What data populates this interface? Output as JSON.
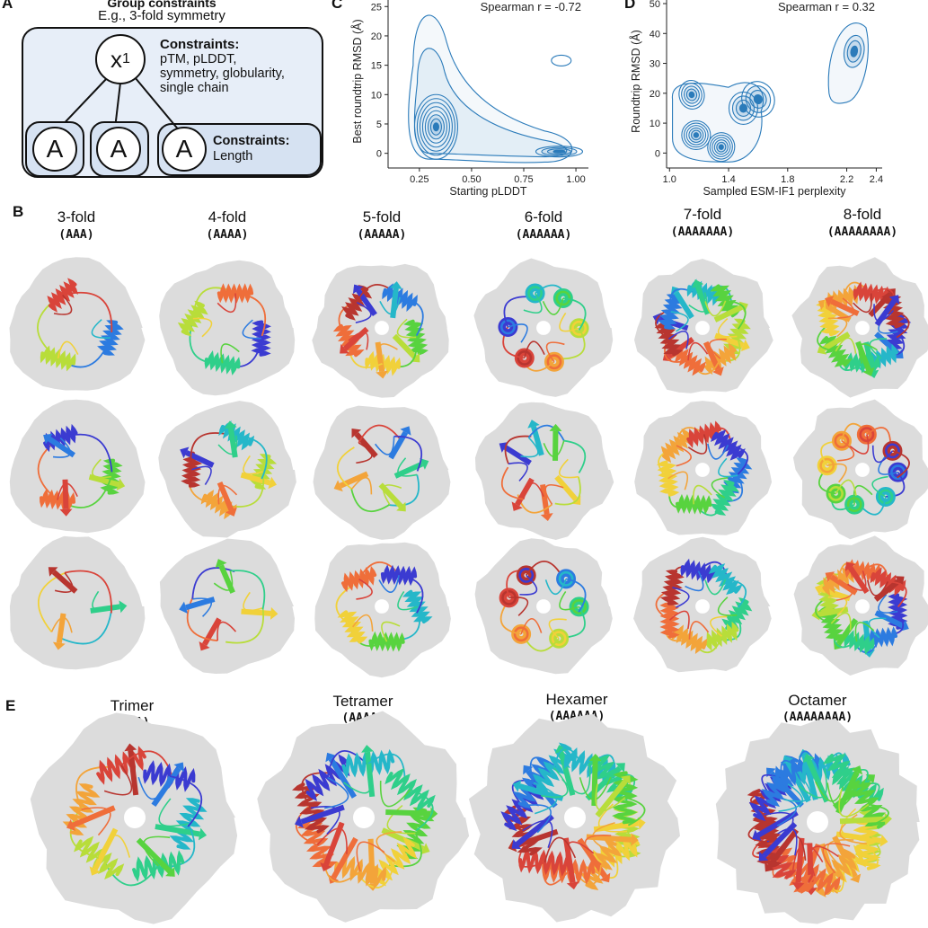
{
  "panels": {
    "a": {
      "letter": "A",
      "title": "Group constraints",
      "subtitle": "E.g., 3-fold symmetry",
      "root_node": "x",
      "root_subscript": "1",
      "leaf_symbol": "A",
      "constraints_top_heading": "Constraints:",
      "constraints_top_lines": [
        "pTM, pLDDT,",
        "symmetry, globularity,",
        "single chain"
      ],
      "constraints_leaf_heading": "Constraints:",
      "constraints_leaf_text": "Length"
    },
    "b": {
      "letter": "B",
      "folds": [
        {
          "label": "3-fold",
          "seq": "(AAA)"
        },
        {
          "label": "4-fold",
          "seq": "(AAAA)"
        },
        {
          "label": "5-fold",
          "seq": "(AAAAA)"
        },
        {
          "label": "6-fold",
          "seq": "(AAAAAA)"
        },
        {
          "label": "7-fold",
          "seq": "(AAAAAAA)"
        },
        {
          "label": "8-fold",
          "seq": "(AAAAAAAA)"
        }
      ]
    },
    "e": {
      "letter": "E",
      "oligomers": [
        {
          "label": "Trimer",
          "seq": "(AAA)"
        },
        {
          "label": "Tetramer",
          "seq": "(AAAA)"
        },
        {
          "label": "Hexamer",
          "seq": "(AAAAAA)"
        },
        {
          "label": "Octamer",
          "seq": "(AAAAAAAA)"
        }
      ]
    }
  },
  "chart_data": [
    {
      "panel": "C",
      "type": "density-contour",
      "xlabel": "Starting pLDDT",
      "ylabel": "Best roundtrip RMSD (Å)",
      "annotation": "Spearman r = -0.72",
      "xlim": [
        0.1,
        1.06
      ],
      "ylim": [
        -2.5,
        25.5
      ],
      "xticks": [
        0.25,
        0.5,
        0.75,
        1.0
      ],
      "xtick_labels": [
        "0.25",
        "0.50",
        "0.75",
        "1.00"
      ],
      "yticks": [
        0,
        5,
        10,
        15,
        20,
        25
      ],
      "grid": false,
      "main_mode": [
        0.33,
        4.5
      ],
      "secondary_mode": [
        0.92,
        0.3
      ],
      "outlier_mode": [
        0.93,
        15.8
      ],
      "color": "#2b7bba"
    },
    {
      "panel": "D",
      "type": "density-contour",
      "xlabel": "Sampled ESM-IF1 perplexity",
      "ylabel": "Roundtrip RMSD (Å)",
      "annotation": "Spearman r = 0.32",
      "xlim": [
        0.98,
        2.44
      ],
      "ylim": [
        -5,
        50
      ],
      "xticks": [
        1.0,
        1.4,
        1.8,
        2.2,
        2.4
      ],
      "xtick_labels": [
        "1.0",
        "1.4",
        "1.8",
        "2.2",
        "2.4"
      ],
      "yticks": [
        0,
        10,
        20,
        30,
        40,
        50
      ],
      "grid": false,
      "modes": [
        [
          1.15,
          19.5
        ],
        [
          1.18,
          6
        ],
        [
          1.35,
          2
        ],
        [
          1.5,
          15
        ],
        [
          1.6,
          18
        ],
        [
          2.25,
          34
        ]
      ],
      "color": "#2b7bba"
    }
  ],
  "colors": {
    "accent": "#2b7bba",
    "diagram_fill": "#e7eef8",
    "leaf_fill": "#d6e2f2",
    "halo": "#dcdcdc"
  }
}
